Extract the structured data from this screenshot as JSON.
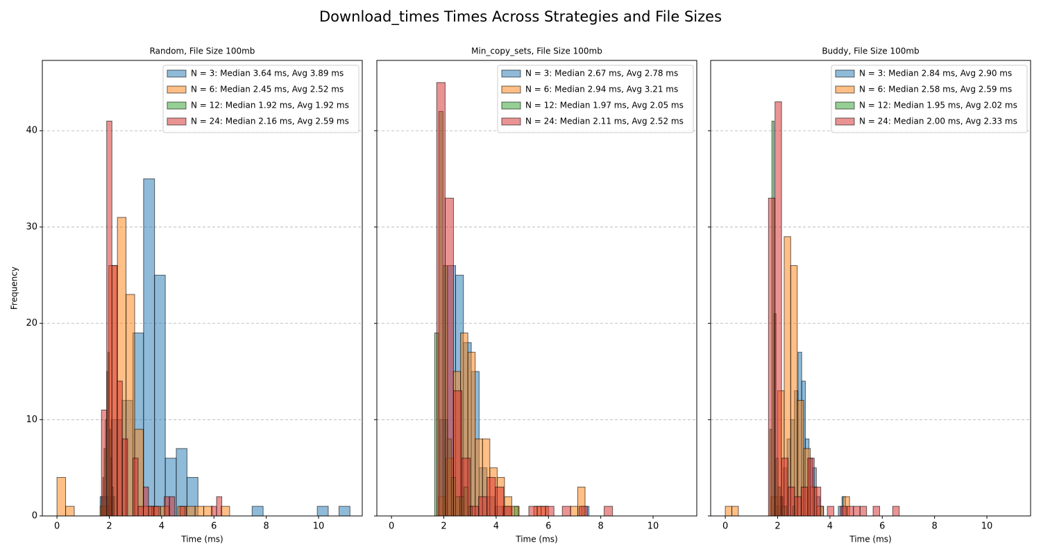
{
  "title": "Download_times Times Across Strategies and File Sizes",
  "chart_data": [
    {
      "type": "histogram",
      "title": "Random, File Size 100mb",
      "xlabel": "Time (ms)",
      "ylabel": "Frequency",
      "xlim": [
        -0.56,
        11.67
      ],
      "xticks": [
        0,
        2,
        4,
        6,
        8,
        10
      ],
      "ylim": [
        0,
        47.3
      ],
      "yticks": [
        0,
        10,
        20,
        30,
        40
      ],
      "grid": "y",
      "legend": "upper right",
      "series": [
        {
          "name": "N = 3: Median 3.64 ms, Avg 3.89 ms",
          "color": "#1f77b4",
          "bins": [
            1.65,
            2.07,
            2.48,
            2.9,
            3.31,
            3.73,
            4.14,
            4.56,
            4.97,
            5.39,
            5.8,
            6.22,
            6.63,
            7.05,
            7.46,
            7.88,
            8.29,
            8.71,
            9.12,
            9.54,
            9.95,
            10.37,
            10.78,
            11.2
          ],
          "values": [
            2,
            10,
            12,
            19,
            35,
            25,
            6,
            7,
            4,
            0,
            0,
            0,
            0,
            0,
            1,
            0,
            0,
            0,
            0,
            0,
            1,
            0,
            1
          ]
        },
        {
          "name": "N = 6: Median 2.45 ms, Avg 2.52 ms",
          "color": "#ff7f0e",
          "bins": [
            0,
            0.33,
            0.66,
            0.99,
            1.32,
            1.65,
            1.98,
            2.31,
            2.64,
            2.97,
            3.3,
            3.63,
            3.96,
            4.29,
            4.62,
            4.95,
            5.28,
            5.61,
            5.94,
            6.27,
            6.6
          ],
          "values": [
            4,
            1,
            0,
            0,
            0,
            1,
            26,
            31,
            23,
            9,
            1,
            1,
            1,
            0,
            1,
            1,
            1,
            1,
            0,
            1
          ]
        },
        {
          "name": "N = 12: Median 1.92 ms, Avg 1.92 ms",
          "color": "#2ca02c",
          "bins": [
            1.7,
            1.75,
            1.8,
            1.85,
            1.9,
            1.95,
            2.0,
            2.05,
            2.1,
            2.15,
            2.2
          ],
          "values": [
            2,
            4,
            7,
            10,
            15,
            17,
            9,
            6,
            3,
            2
          ]
        },
        {
          "name": "N = 24: Median 2.16 ms, Avg 2.59 ms",
          "color": "#d62728",
          "bins": [
            1.7,
            1.9,
            2.1,
            2.3,
            2.5,
            2.7,
            2.9,
            3.1,
            3.3,
            3.5,
            3.7,
            3.9,
            4.1,
            4.3,
            4.5,
            4.7,
            4.9,
            5.1,
            5.3,
            5.5,
            5.7,
            5.9,
            6.1,
            6.3
          ],
          "values": [
            11,
            41,
            26,
            14,
            8,
            0,
            6,
            1,
            3,
            1,
            1,
            0,
            2,
            2,
            0,
            1,
            0,
            0,
            0,
            0,
            0,
            1,
            2
          ]
        }
      ]
    },
    {
      "type": "histogram",
      "title": "Min_copy_sets, File Size 100mb",
      "xlabel": "Time (ms)",
      "xlim": [
        -0.56,
        11.67
      ],
      "xticks": [
        0,
        2,
        4,
        6,
        8,
        10
      ],
      "sharey": true,
      "grid": "y",
      "legend": "upper right",
      "series": [
        {
          "name": "N = 3: Median 2.67 ms, Avg 2.78 ms",
          "color": "#1f77b4",
          "bins": [
            1.85,
            2.15,
            2.45,
            2.75,
            3.05,
            3.35,
            3.65,
            3.95,
            4.25,
            4.55,
            4.85,
            5.15,
            5.45,
            5.75,
            6.05,
            6.35,
            6.65,
            6.95,
            7.25,
            7.55,
            7.85
          ],
          "values": [
            10,
            26,
            25,
            18,
            15,
            5,
            2,
            1,
            1,
            0,
            0,
            0,
            0,
            0,
            0,
            0,
            0,
            0,
            1,
            0
          ]
        },
        {
          "name": "N = 6: Median 2.94 ms, Avg 3.21 ms",
          "color": "#ff7f0e",
          "bins": [
            1.8,
            2.08,
            2.36,
            2.64,
            2.92,
            3.2,
            3.48,
            3.76,
            4.04,
            4.32,
            4.6,
            4.88,
            5.16,
            5.44,
            5.72,
            6.0,
            6.28,
            6.56,
            6.84,
            7.12,
            7.4
          ],
          "values": [
            2,
            6,
            15,
            19,
            17,
            8,
            8,
            5,
            4,
            2,
            1,
            0,
            0,
            1,
            1,
            0,
            0,
            0,
            1,
            3
          ]
        },
        {
          "name": "N = 12: Median 1.97 ms, Avg 2.05 ms",
          "color": "#2ca02c",
          "bins": [
            1.65,
            1.81,
            1.97,
            2.13,
            2.29,
            2.45,
            2.61,
            2.77,
            2.93,
            3.09,
            3.25,
            3.41,
            3.57,
            3.73,
            3.89,
            4.05,
            4.21,
            4.37,
            4.53,
            4.69,
            4.85
          ],
          "values": [
            19,
            42,
            26,
            8,
            4,
            2,
            2,
            3,
            1,
            0,
            0,
            0,
            0,
            0,
            0,
            0,
            0,
            0,
            0,
            1
          ]
        },
        {
          "name": "N = 24: Median 2.11 ms, Avg 2.52 ms",
          "color": "#d62728",
          "bins": [
            1.73,
            2.05,
            2.37,
            2.69,
            3.01,
            3.33,
            3.65,
            3.97,
            4.29,
            4.61,
            4.93,
            5.25,
            5.57,
            5.89,
            6.21,
            6.53,
            6.85,
            7.17,
            7.49,
            7.81,
            8.13,
            8.45
          ],
          "values": [
            45,
            33,
            13,
            6,
            1,
            2,
            4,
            3,
            1,
            0,
            0,
            1,
            1,
            1,
            0,
            1,
            0,
            1,
            0,
            0,
            1
          ]
        }
      ]
    },
    {
      "type": "histogram",
      "title": "Buddy, File Size 100mb",
      "xlabel": "Time (ms)",
      "xlim": [
        -0.56,
        11.67
      ],
      "xticks": [
        0,
        2,
        4,
        6,
        8,
        10
      ],
      "sharey": true,
      "grid": "y",
      "legend": "upper right",
      "series": [
        {
          "name": "N = 3: Median 2.84 ms, Avg 2.90 ms",
          "color": "#1f77b4",
          "bins": [
            1.8,
            1.94,
            2.08,
            2.22,
            2.36,
            2.5,
            2.64,
            2.78,
            2.92,
            3.06,
            3.2,
            3.34,
            3.48,
            3.62,
            3.76,
            3.9,
            4.04,
            4.18,
            4.32,
            4.46,
            4.6
          ],
          "values": [
            0,
            1,
            2,
            5,
            8,
            10,
            13,
            17,
            14,
            8,
            6,
            5,
            2,
            1,
            0,
            0,
            0,
            0,
            1,
            2
          ]
        },
        {
          "name": "N = 6: Median 2.58 ms, Avg 2.59 ms",
          "color": "#ff7f0e",
          "bins": [
            0,
            0.25,
            0.5,
            0.75,
            1.0,
            1.25,
            1.5,
            1.75,
            2.0,
            2.25,
            2.5,
            2.75,
            3.0,
            3.25,
            3.5,
            3.75,
            4.0,
            4.25,
            4.5,
            4.75,
            5.0
          ],
          "values": [
            1,
            1,
            0,
            0,
            0,
            0,
            0,
            2,
            13,
            29,
            26,
            12,
            7,
            3,
            1,
            0,
            0,
            0,
            2,
            0
          ]
        },
        {
          "name": "N = 12: Median 1.95 ms, Avg 2.02 ms",
          "color": "#2ca02c",
          "bins": [
            1.7,
            1.78,
            1.86,
            1.94,
            2.02,
            2.1,
            2.18,
            2.26,
            2.34,
            2.42,
            2.5,
            2.58,
            2.66
          ],
          "values": [
            9,
            41,
            21,
            6,
            3,
            2,
            1,
            1,
            0,
            0,
            0,
            1
          ]
        },
        {
          "name": "N = 24: Median 2.00 ms, Avg 2.33 ms",
          "color": "#d62728",
          "bins": [
            1.65,
            1.9,
            2.15,
            2.4,
            2.65,
            2.9,
            3.15,
            3.4,
            3.65,
            3.9,
            4.15,
            4.4,
            4.65,
            4.9,
            5.15,
            5.4,
            5.65,
            5.9,
            6.15,
            6.4,
            6.65
          ],
          "values": [
            33,
            43,
            6,
            3,
            2,
            3,
            6,
            3,
            0,
            1,
            0,
            1,
            1,
            1,
            1,
            0,
            1,
            0,
            0,
            1
          ]
        }
      ]
    }
  ]
}
